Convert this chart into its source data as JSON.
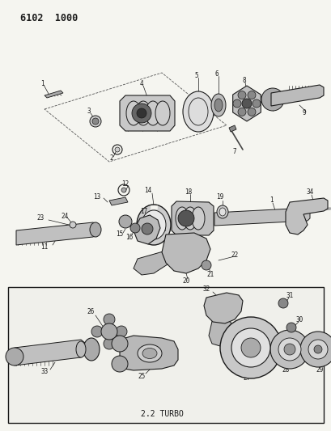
{
  "title": "6102 1000",
  "bg_color": "#f5f5f0",
  "title_fontsize": 9,
  "fig_width": 4.1,
  "fig_height": 5.33,
  "dpi": 100,
  "line_color": "#1a1a1a",
  "text_color": "#1a1a1a",
  "box_label": "2.2 TURBO"
}
